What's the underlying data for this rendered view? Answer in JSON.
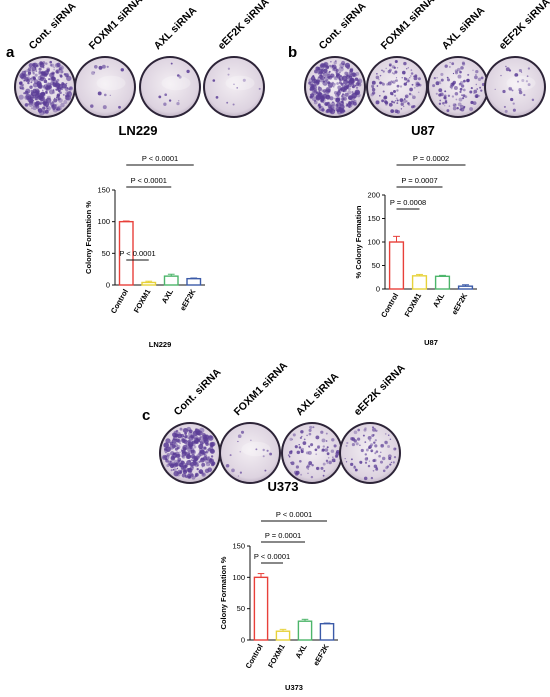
{
  "panels": [
    {
      "letter": "a",
      "cell_line": "LN229",
      "conditions": [
        "Cont. siRNA",
        "FOXM1 siRNA",
        "AXL siRNA",
        "eEF2K siRNA"
      ],
      "dish_density": [
        0.85,
        0.04,
        0.03,
        0.03
      ]
    },
    {
      "letter": "b",
      "cell_line": "U87",
      "conditions": [
        "Cont. siRNA",
        "FOXM1 siRNA",
        "AXL siRNA",
        "eEF2K siRNA"
      ],
      "dish_density": [
        0.9,
        0.35,
        0.3,
        0.08
      ]
    },
    {
      "letter": "c",
      "cell_line": "U373",
      "conditions": [
        "Cont. siRNA",
        "FOXM1 siRNA",
        "AXL siRNA",
        "eEF2K siRNA"
      ],
      "dish_density": [
        0.85,
        0.05,
        0.25,
        0.25
      ]
    }
  ],
  "colors": {
    "control": "#e8403a",
    "foxm1": "#e7d23a",
    "axl": "#4cb56a",
    "eef2k": "#3b5aa8",
    "stain": "#5b3d96"
  },
  "chart_data": [
    {
      "type": "bar",
      "categories": [
        "Control",
        "FOXM1",
        "AXL",
        "eEF2K"
      ],
      "values": [
        100,
        4,
        14,
        10
      ],
      "errors": [
        1,
        2,
        3,
        1
      ],
      "ylabel": "Colony Formation %",
      "xlabel": "LN229",
      "ylim": [
        0,
        150
      ],
      "yticks": [
        "0",
        "50",
        "100",
        "150"
      ],
      "significance": [
        "P < 0.0001",
        "P < 0.0001",
        "P < 0.0001"
      ]
    },
    {
      "type": "bar",
      "categories": [
        "Control",
        "FOXM1",
        "AXL",
        "eEF2K"
      ],
      "values": [
        100,
        28,
        27,
        6
      ],
      "errors": [
        12,
        3,
        2,
        3
      ],
      "ylabel": "% Colony Formation",
      "xlabel": "U87",
      "ylim": [
        0,
        200
      ],
      "yticks": [
        "0",
        "50",
        "100",
        "150",
        "200"
      ],
      "significance": [
        "P = 0.0008",
        "P = 0.0007",
        "P = 0.0002"
      ]
    },
    {
      "type": "bar",
      "categories": [
        "Control",
        "FOXM1",
        "AXL",
        "eEF2K"
      ],
      "values": [
        100,
        14,
        30,
        26
      ],
      "errors": [
        6,
        3,
        3,
        1
      ],
      "ylabel": "Colony Formation %",
      "xlabel": "U373",
      "ylim": [
        0,
        150
      ],
      "yticks": [
        "0",
        "50",
        "100",
        "150"
      ],
      "significance": [
        "P < 0.0001",
        "P = 0.0001",
        "P < 0.0001"
      ]
    }
  ]
}
